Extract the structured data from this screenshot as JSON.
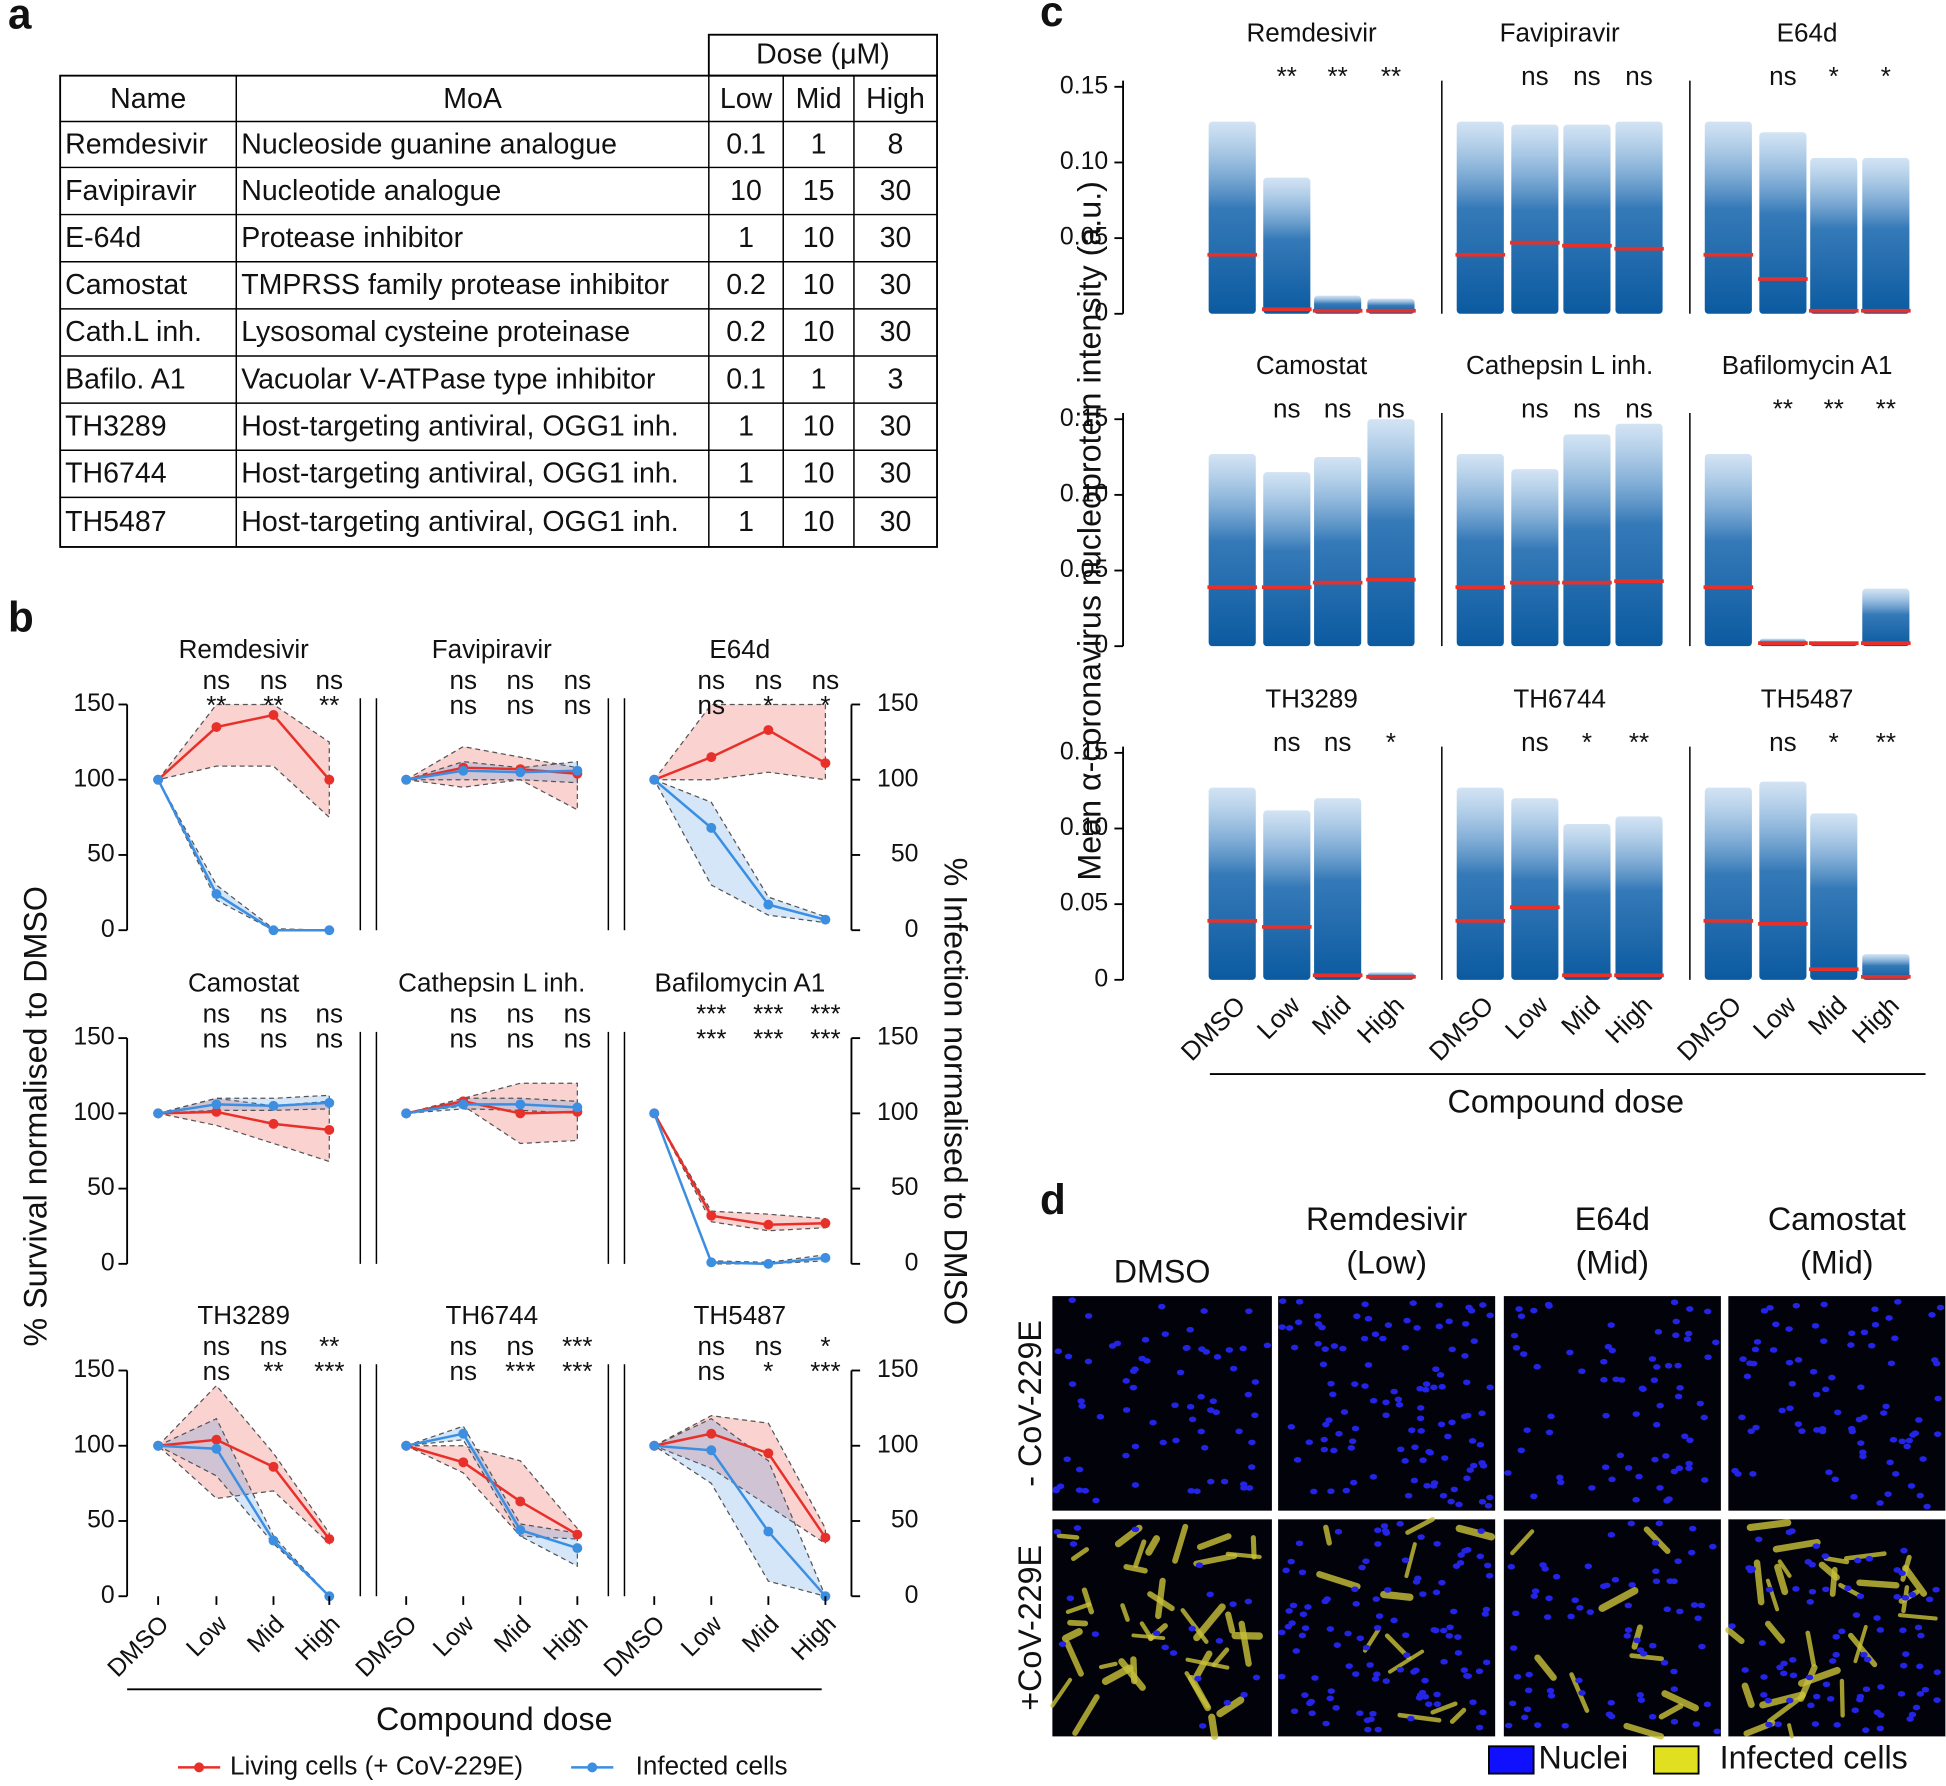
{
  "panel_labels": [
    "a",
    "b",
    "c",
    "d"
  ],
  "table": {
    "dose_header": "Dose (μM)",
    "columns": [
      "Name",
      "MoA",
      "Low",
      "Mid",
      "High"
    ],
    "rows": [
      [
        "Remdesivir",
        "Nucleoside guanine analogue",
        "0.1",
        "1",
        "8"
      ],
      [
        "Favipiravir",
        "Nucleotide analogue",
        "10",
        "15",
        "30"
      ],
      [
        "E-64d",
        "Protease inhibitor",
        "1",
        "10",
        "30"
      ],
      [
        "Camostat",
        "TMPRSS family protease inhibitor",
        "0.2",
        "10",
        "30"
      ],
      [
        "Cath.L inh.",
        "Lysosomal cysteine proteinase",
        "0.2",
        "10",
        "30"
      ],
      [
        "Bafilo. A1",
        "Vacuolar V-ATPase type inhibitor",
        "0.1",
        "1",
        "3"
      ],
      [
        "TH3289",
        "Host-targeting antiviral, OGG1 inh.",
        "1",
        "10",
        "30"
      ],
      [
        "TH6744",
        "Host-targeting antiviral, OGG1 inh.",
        "1",
        "10",
        "30"
      ],
      [
        "TH5487",
        "Host-targeting antiviral, OGG1 inh.",
        "1",
        "10",
        "30"
      ]
    ]
  },
  "chart_data": [
    {
      "type": "line",
      "categories": [
        "DMSO",
        "Low",
        "Mid",
        "High"
      ],
      "ylim": [
        0,
        150
      ],
      "yticks": [
        0,
        50,
        100,
        150
      ],
      "y_label": "% Survival normalised to DMSO",
      "y2_label": "% Infection normalised to DMSO",
      "x_label": "Compound dose",
      "series": [
        {
          "name": "Living cells (+ CoV-229E)",
          "color": "#e8302a"
        },
        {
          "name": "Infected cells",
          "color": "#3b8ee0"
        }
      ],
      "panels": [
        {
          "title": "Remdesivir",
          "series": [
            {
              "values": [
                100,
                135,
                143,
                100
              ],
              "lower": [
                100,
                109,
                109,
                75
              ],
              "upper": [
                100,
                150,
                150,
                125
              ],
              "sig": [
                "ns",
                "ns",
                "ns"
              ]
            },
            {
              "values": [
                100,
                24,
                0,
                0
              ],
              "lower": [
                100,
                20,
                0,
                0
              ],
              "upper": [
                100,
                30,
                1,
                0
              ],
              "sig": [
                "**",
                "**",
                "**"
              ]
            }
          ]
        },
        {
          "title": "Favipiravir",
          "series": [
            {
              "values": [
                100,
                108,
                107,
                104
              ],
              "lower": [
                100,
                95,
                100,
                80
              ],
              "upper": [
                100,
                122,
                115,
                108
              ],
              "sig": [
                "ns",
                "ns",
                "ns"
              ]
            },
            {
              "values": [
                100,
                106,
                105,
                106
              ],
              "lower": [
                100,
                100,
                100,
                98
              ],
              "upper": [
                100,
                112,
                108,
                112
              ],
              "sig": [
                "ns",
                "ns",
                "ns"
              ]
            }
          ]
        },
        {
          "title": "E64d",
          "series": [
            {
              "values": [
                100,
                115,
                133,
                111
              ],
              "lower": [
                100,
                100,
                105,
                100
              ],
              "upper": [
                100,
                150,
                150,
                150
              ],
              "sig": [
                "ns",
                "ns",
                "ns"
              ]
            },
            {
              "values": [
                100,
                68,
                17,
                7
              ],
              "lower": [
                100,
                30,
                10,
                5
              ],
              "upper": [
                100,
                85,
                22,
                9
              ],
              "sig": [
                "ns",
                "*",
                "*"
              ]
            }
          ]
        },
        {
          "title": "Camostat",
          "series": [
            {
              "values": [
                100,
                101,
                93,
                89
              ],
              "lower": [
                100,
                92,
                80,
                68
              ],
              "upper": [
                100,
                110,
                105,
                108
              ],
              "sig": [
                "ns",
                "ns",
                "ns"
              ]
            },
            {
              "values": [
                100,
                106,
                105,
                107
              ],
              "lower": [
                100,
                102,
                102,
                103
              ],
              "upper": [
                100,
                110,
                110,
                112
              ],
              "sig": [
                "ns",
                "ns",
                "ns"
              ]
            }
          ]
        },
        {
          "title": "Cathepsin L inh.",
          "series": [
            {
              "values": [
                100,
                108,
                100,
                101
              ],
              "lower": [
                100,
                105,
                80,
                82
              ],
              "upper": [
                100,
                110,
                120,
                120
              ],
              "sig": [
                "ns",
                "ns",
                "ns"
              ]
            },
            {
              "values": [
                100,
                106,
                106,
                104
              ],
              "lower": [
                100,
                103,
                102,
                100
              ],
              "upper": [
                100,
                110,
                110,
                108
              ],
              "sig": [
                "ns",
                "ns",
                "ns"
              ]
            }
          ]
        },
        {
          "title": "Bafilomycin A1",
          "series": [
            {
              "values": [
                100,
                32,
                26,
                27
              ],
              "lower": [
                100,
                28,
                22,
                24
              ],
              "upper": [
                100,
                35,
                33,
                30
              ],
              "sig": [
                "***",
                "***",
                "***"
              ]
            },
            {
              "values": [
                100,
                1,
                0,
                4
              ],
              "lower": [
                100,
                0,
                0,
                2
              ],
              "upper": [
                100,
                2,
                1,
                6
              ],
              "sig": [
                "***",
                "***",
                "***"
              ]
            }
          ]
        },
        {
          "title": "TH3289",
          "series": [
            {
              "values": [
                100,
                104,
                86,
                38
              ],
              "lower": [
                100,
                65,
                70,
                35
              ],
              "upper": [
                100,
                140,
                95,
                42
              ],
              "sig": [
                "ns",
                "ns",
                "**"
              ]
            },
            {
              "values": [
                100,
                98,
                37,
                0
              ],
              "lower": [
                100,
                80,
                35,
                0
              ],
              "upper": [
                100,
                118,
                40,
                0
              ],
              "sig": [
                "ns",
                "**",
                "***"
              ]
            }
          ]
        },
        {
          "title": "TH6744",
          "series": [
            {
              "values": [
                100,
                89,
                63,
                41
              ],
              "lower": [
                100,
                82,
                40,
                38
              ],
              "upper": [
                100,
                100,
                90,
                45
              ],
              "sig": [
                "ns",
                "ns",
                "***"
              ]
            },
            {
              "values": [
                100,
                108,
                44,
                32
              ],
              "lower": [
                100,
                104,
                40,
                20
              ],
              "upper": [
                100,
                113,
                48,
                42
              ],
              "sig": [
                "ns",
                "***",
                "***"
              ]
            }
          ]
        },
        {
          "title": "TH5487",
          "series": [
            {
              "values": [
                100,
                108,
                95,
                39
              ],
              "lower": [
                100,
                85,
                60,
                35
              ],
              "upper": [
                100,
                120,
                115,
                45
              ],
              "sig": [
                "ns",
                "ns",
                "*"
              ]
            },
            {
              "values": [
                100,
                97,
                43,
                0
              ],
              "lower": [
                100,
                75,
                10,
                0
              ],
              "upper": [
                100,
                118,
                90,
                0
              ],
              "sig": [
                "ns",
                "*",
                "***"
              ]
            }
          ]
        }
      ]
    },
    {
      "type": "strip",
      "categories": [
        "DMSO",
        "Low",
        "Mid",
        "High"
      ],
      "ylim": [
        0,
        0.15
      ],
      "yticks": [
        0,
        0.05,
        {
          "value": 0.1,
          "label": "0.10"
        },
        0.15
      ],
      "y_label": "Mean α-coronavirus nucleoprotein intensity (a.u.)",
      "x_label": "Compound dose",
      "point_color": "#1f6bb0",
      "median_color": "#e8302a",
      "panels": [
        {
          "title": "Remdesivir",
          "sig": [
            "**",
            "**",
            "**"
          ],
          "median": [
            0.039,
            0.003,
            0.002,
            0.002
          ],
          "max": [
            0.127,
            0.09,
            0.012,
            0.01
          ]
        },
        {
          "title": "Favipiravir",
          "sig": [
            "ns",
            "ns",
            "ns"
          ],
          "median": [
            0.039,
            0.047,
            0.045,
            0.043
          ],
          "max": [
            0.127,
            0.125,
            0.125,
            0.127
          ]
        },
        {
          "title": "E64d",
          "sig": [
            "ns",
            "*",
            "*"
          ],
          "median": [
            0.039,
            0.023,
            0.002,
            0.002
          ],
          "max": [
            0.127,
            0.12,
            0.103,
            0.103
          ]
        },
        {
          "title": "Camostat",
          "sig": [
            "ns",
            "ns",
            "ns"
          ],
          "median": [
            0.039,
            0.039,
            0.042,
            0.044
          ],
          "max": [
            0.127,
            0.115,
            0.125,
            0.15
          ]
        },
        {
          "title": "Cathepsin L inh.",
          "sig": [
            "ns",
            "ns",
            "ns"
          ],
          "median": [
            0.039,
            0.042,
            0.042,
            0.043
          ],
          "max": [
            0.127,
            0.117,
            0.14,
            0.147
          ]
        },
        {
          "title": "Bafilomycin A1",
          "sig": [
            "**",
            "**",
            "**"
          ],
          "median": [
            0.039,
            0.002,
            0.002,
            0.002
          ],
          "max": [
            0.127,
            0.005,
            0.003,
            0.038
          ]
        },
        {
          "title": "TH3289",
          "sig": [
            "ns",
            "ns",
            "*"
          ],
          "median": [
            0.039,
            0.035,
            0.003,
            0.002
          ],
          "max": [
            0.127,
            0.112,
            0.12,
            0.005
          ]
        },
        {
          "title": "TH6744",
          "sig": [
            "ns",
            "*",
            "**"
          ],
          "median": [
            0.039,
            0.048,
            0.003,
            0.003
          ],
          "max": [
            0.127,
            0.12,
            0.103,
            0.108
          ]
        },
        {
          "title": "TH5487",
          "sig": [
            "ns",
            "*",
            "**"
          ],
          "median": [
            0.039,
            0.037,
            0.007,
            0.002
          ],
          "max": [
            0.127,
            0.131,
            0.11,
            0.017
          ]
        }
      ]
    }
  ],
  "panel_d": {
    "columns": [
      [
        "DMSO"
      ],
      [
        "Remdesivir",
        "(Low)"
      ],
      [
        "E64d",
        "(Mid)"
      ],
      [
        "Camostat",
        "(Mid)"
      ]
    ],
    "rows": [
      "- CoV-229E",
      "+CoV-229E"
    ],
    "legend": [
      {
        "name": "Nuclei",
        "color": "#1010ff"
      },
      {
        "name": "Infected cells",
        "color": "#e0e020"
      }
    ]
  }
}
